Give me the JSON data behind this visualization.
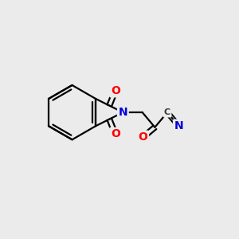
{
  "background_color": "#ebebeb",
  "bond_color": "#000000",
  "bond_width": 1.6,
  "atom_colors": {
    "C": "#3a3a3a",
    "N": "#0000dd",
    "O": "#ff0000"
  },
  "font_size": 10,
  "fig_size": [
    3.0,
    3.0
  ],
  "dpi": 100,
  "xlim": [
    0,
    10
  ],
  "ylim": [
    0,
    10
  ]
}
